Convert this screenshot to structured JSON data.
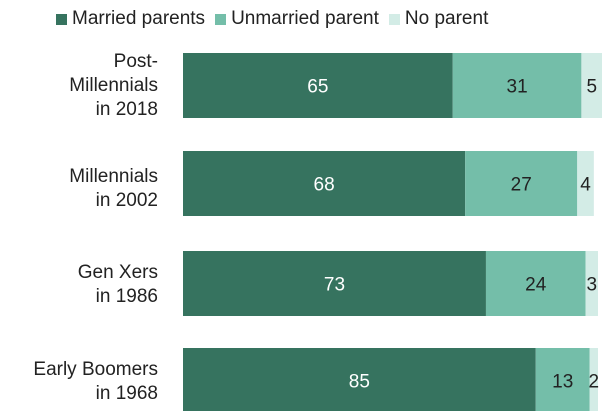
{
  "chart_data": {
    "type": "bar",
    "orientation": "horizontal",
    "stacked": true,
    "categories": [
      "Post-\nMillennials\nin 2018",
      "Millennials\nin 2002",
      "Gen Xers\nin 1986",
      "Early Boomers\nin 1968"
    ],
    "series": [
      {
        "name": "Married parents",
        "values": [
          65,
          68,
          73,
          85
        ],
        "color": "#36735f"
      },
      {
        "name": "Unmarried parent",
        "values": [
          31,
          27,
          24,
          13
        ],
        "color": "#74bea9"
      },
      {
        "name": "No parent",
        "values": [
          5,
          4,
          3,
          2
        ],
        "color": "#d3ece6"
      }
    ],
    "legend_position": "top",
    "grid": false,
    "xlim": [
      0,
      100
    ]
  }
}
